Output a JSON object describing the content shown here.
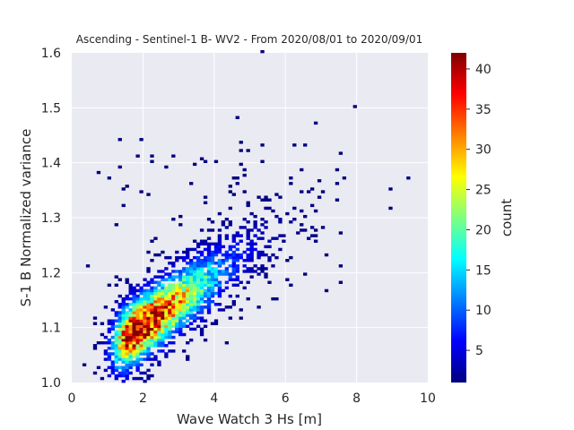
{
  "chart_data": {
    "type": "heatmap",
    "title": "Ascending - Sentinel-1 B- WV2 - From 2020/08/01 to 2020/09/01",
    "xlabel": "Wave Watch 3 Hs [m]",
    "ylabel": "S-1 B Normalized variance",
    "xlim": [
      0,
      10
    ],
    "ylim": [
      1.0,
      1.6
    ],
    "xticks": [
      "0",
      "2",
      "4",
      "6",
      "8",
      "10"
    ],
    "yticks": [
      "1.0",
      "1.1",
      "1.2",
      "1.3",
      "1.4",
      "1.5",
      "1.6"
    ],
    "grid": true,
    "colormap": "jet",
    "colorbar": {
      "label": "count",
      "range": [
        1,
        42
      ],
      "ticks": [
        "5",
        "10",
        "15",
        "20",
        "25",
        "30",
        "35",
        "40"
      ]
    },
    "bins": {
      "x_width": 0.1,
      "y_width": 0.005
    },
    "density_model": {
      "description": "2D histogram of collocated points; density peak near Hs 1.7 m, variance 1.09",
      "center_x": 1.7,
      "center_y": 1.09,
      "peak_count": 42,
      "trend_slope": 0.045,
      "spread_x": 2.0,
      "spread_y": 0.045
    },
    "outliers": [
      {
        "x": 0.7,
        "y": 1.38
      },
      {
        "x": 5.3,
        "y": 1.6
      },
      {
        "x": 7.9,
        "y": 1.5
      },
      {
        "x": 9.4,
        "y": 1.37
      },
      {
        "x": 8.9,
        "y": 1.35
      },
      {
        "x": 0.3,
        "y": 1.03
      },
      {
        "x": 6.8,
        "y": 1.47
      },
      {
        "x": 4.6,
        "y": 1.48
      }
    ]
  },
  "colors": {
    "background": "#eaeaf2",
    "grid": "#ffffff",
    "text": "#262626"
  }
}
